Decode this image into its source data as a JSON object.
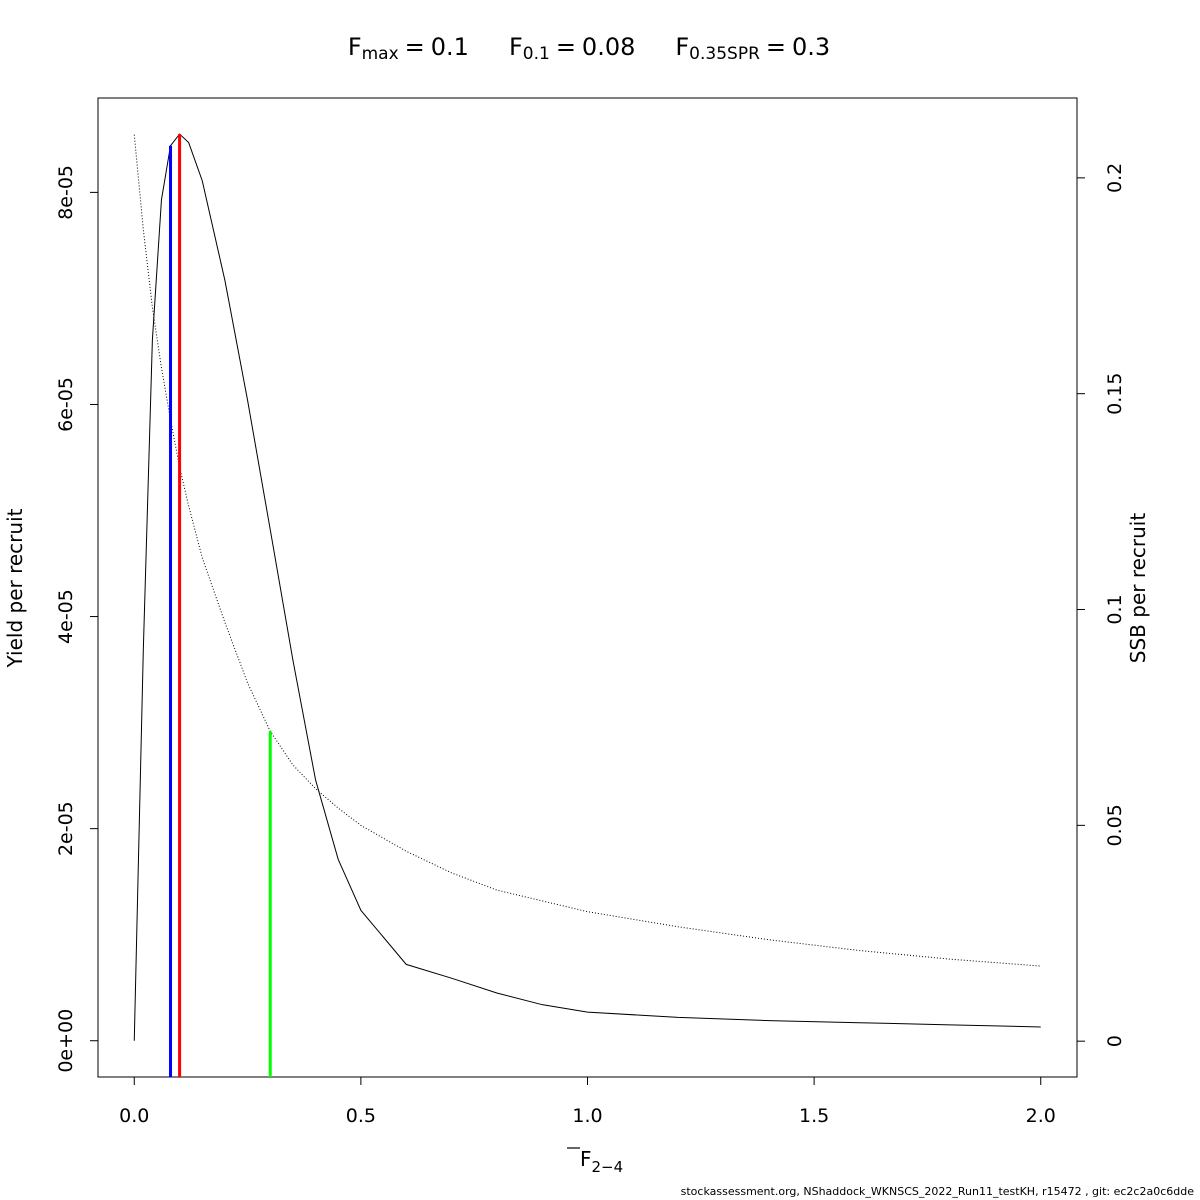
{
  "chart_data": {
    "type": "line",
    "equals": "=",
    "references": [
      {
        "symbol": "F",
        "subscript": "max",
        "x": 0.1,
        "y": 8.55e-05,
        "color": "#ff0000"
      },
      {
        "symbol": "F",
        "subscript": "0.1",
        "x": 0.08,
        "y": 8.44e-05,
        "color": "#0000ff"
      },
      {
        "symbol": "F",
        "subscript": "0.35SPR",
        "x": 0.3,
        "y": 0.0718,
        "axis": "y2",
        "color": "#00ff00"
      }
    ],
    "xlabel": {
      "symbol": "F",
      "subscript": "2−4"
    },
    "ylabel": "Yield per recruit",
    "y2label": "SSB per recruit",
    "caption": "stockassessment.org, NShaddock_WKNSCS_2022_Run11_testKH, r15472 , git: ec2c2a0c6dde",
    "x": [
      0,
      0.02,
      0.04,
      0.06,
      0.08,
      0.1,
      0.12,
      0.15,
      0.2,
      0.25,
      0.3,
      0.35,
      0.4,
      0.45,
      0.5,
      0.6,
      0.7,
      0.8,
      0.9,
      1.0,
      1.2,
      1.4,
      1.6,
      1.8,
      2.0
    ],
    "series": [
      {
        "color": "#000000",
        "linestyle": "solid",
        "values": [
          0,
          3.69e-05,
          6.61e-05,
          7.93e-05,
          8.44e-05,
          8.55e-05,
          8.47e-05,
          8.11e-05,
          7.17e-05,
          6.04e-05,
          4.82e-05,
          3.59e-05,
          2.46e-05,
          1.71e-05,
          1.23e-05,
          7.2e-06,
          5.9e-06,
          4.5e-06,
          3.4e-06,
          2.7e-06,
          2.2e-06,
          1.9e-06,
          1.7e-06,
          1.5e-06,
          1.3e-06
        ]
      },
      {
        "color": "#000000",
        "linestyle": "dotted",
        "axis": "y2",
        "values": [
          0.21,
          0.188,
          0.17,
          0.156,
          0.144,
          0.133,
          0.124,
          0.112,
          0.097,
          0.083,
          0.0718,
          0.064,
          0.0585,
          0.054,
          0.05,
          0.044,
          0.039,
          0.035,
          0.0325,
          0.03,
          0.0265,
          0.0235,
          0.021,
          0.019,
          0.0174
        ]
      }
    ],
    "xlim": [
      -0.08,
      2.08
    ],
    "xticks": [
      {
        "value": 0,
        "label": "0.0"
      },
      0.5,
      {
        "value": 1,
        "label": "1.0"
      },
      1.5,
      {
        "value": 2,
        "label": "2.0"
      }
    ],
    "ylim": [
      -3.42e-06,
      8.89e-05
    ],
    "yticks": [
      {
        "value": 0,
        "label": "0e+00"
      },
      {
        "value": 2e-05,
        "label": "2e-05"
      },
      {
        "value": 4e-05,
        "label": "4e-05"
      },
      {
        "value": 6e-05,
        "label": "6e-05"
      },
      {
        "value": 8e-05,
        "label": "8e-05"
      }
    ],
    "y2lim": [
      -0.0083,
      0.2185
    ],
    "y2ticks": [
      0,
      0.05,
      0.1,
      0.15,
      0.2
    ]
  }
}
